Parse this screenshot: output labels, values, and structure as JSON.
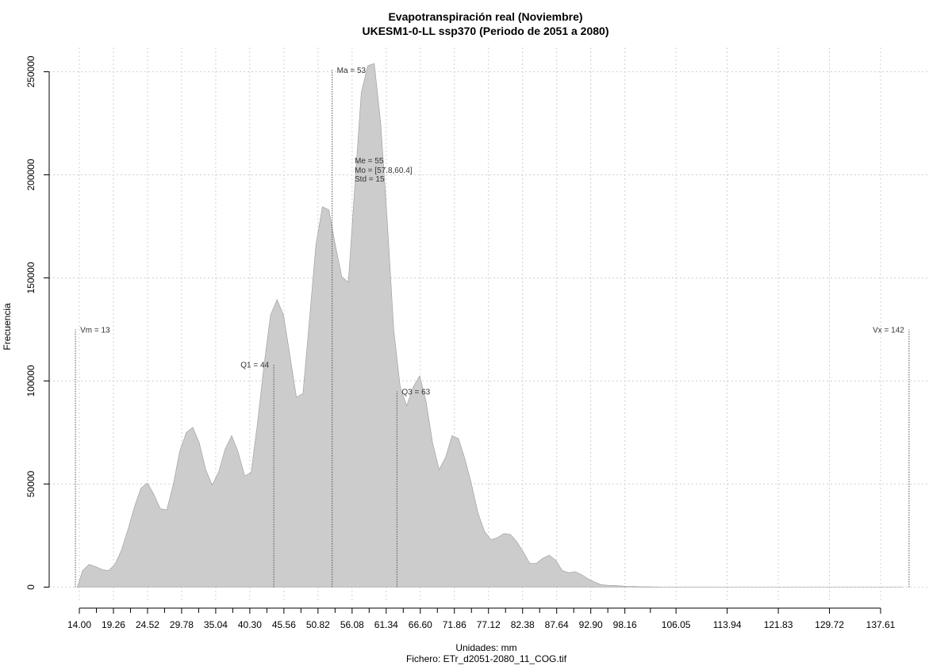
{
  "chart_data": {
    "type": "area",
    "title": "Evapotranspiración real (Noviembre)",
    "subtitle": "UKESM1-0-LL ssp370 (Periodo de 2051 a 2080)",
    "xlabel": "Unidades: mm",
    "ylabel": "Frecuencia",
    "footer": "Fichero: ETr_d2051-2080_11_COG.tif",
    "xlim": [
      12,
      143.5
    ],
    "ylim": [
      0,
      255000
    ],
    "grid": true,
    "fill_color": "#cccccc",
    "x_ticks": [
      {
        "value": 14.0,
        "label": "14.00"
      },
      {
        "value": 19.26,
        "label": "19.26"
      },
      {
        "value": 24.52,
        "label": "24.52"
      },
      {
        "value": 29.78,
        "label": "29.78"
      },
      {
        "value": 35.04,
        "label": "35.04"
      },
      {
        "value": 40.3,
        "label": "40.30"
      },
      {
        "value": 45.56,
        "label": "45.56"
      },
      {
        "value": 50.82,
        "label": "50.82"
      },
      {
        "value": 56.08,
        "label": "56.08"
      },
      {
        "value": 61.34,
        "label": "61.34"
      },
      {
        "value": 66.6,
        "label": "66.60"
      },
      {
        "value": 71.86,
        "label": "71.86"
      },
      {
        "value": 77.12,
        "label": "77.12"
      },
      {
        "value": 82.38,
        "label": "82.38"
      },
      {
        "value": 87.64,
        "label": "87.64"
      },
      {
        "value": 92.9,
        "label": "92.90"
      },
      {
        "value": 98.16,
        "label": "98.16"
      },
      {
        "value": 106.05,
        "label": "106.05"
      },
      {
        "value": 113.94,
        "label": "113.94"
      },
      {
        "value": 121.83,
        "label": "121.83"
      },
      {
        "value": 129.72,
        "label": "129.72"
      },
      {
        "value": 137.61,
        "label": "137.61"
      }
    ],
    "minor_x_ticks": [
      16.63,
      21.89,
      27.15,
      32.41,
      37.67,
      42.93,
      48.19,
      53.45,
      58.71,
      63.97,
      69.23,
      74.49,
      79.75,
      85.01,
      90.27,
      95.53,
      102.1
    ],
    "y_ticks": [
      {
        "value": 0,
        "label": "0"
      },
      {
        "value": 50000,
        "label": "50000"
      },
      {
        "value": 100000,
        "label": "100000"
      },
      {
        "value": 150000,
        "label": "150000"
      },
      {
        "value": 200000,
        "label": "200000"
      },
      {
        "value": 250000,
        "label": "250000"
      }
    ],
    "x": [
      13.7,
      14.5,
      15.5,
      16.5,
      17.5,
      18.5,
      19.5,
      20.5,
      21.5,
      22.5,
      23.5,
      24.5,
      25.5,
      26.5,
      27.5,
      28.5,
      29.5,
      30.5,
      31.5,
      32.5,
      33.5,
      34.5,
      35.5,
      36.5,
      37.5,
      38.5,
      39.5,
      40.5,
      41.5,
      42.5,
      43.5,
      44.5,
      45.5,
      46.5,
      47.5,
      48.5,
      49.5,
      50.5,
      51.5,
      52.5,
      53.5,
      54.5,
      55.5,
      56.5,
      57.5,
      58.5,
      59.5,
      60.5,
      61.5,
      62.5,
      63.5,
      64.5,
      65.5,
      66.5,
      67.5,
      68.5,
      69.5,
      70.5,
      71.5,
      72.5,
      73.5,
      74.5,
      75.5,
      76.5,
      77.5,
      78.5,
      79.5,
      80.5,
      81.5,
      82.5,
      83.5,
      84.5,
      85.5,
      86.5,
      87.5,
      88.5,
      89.5,
      90.5,
      91.5,
      92.5,
      93.5,
      94.5,
      95.5,
      96.5,
      97.5,
      98.5,
      99.5,
      100.5,
      101.5,
      102.5,
      104,
      106,
      110,
      115,
      120,
      125,
      130,
      135,
      141
    ],
    "values": [
      0,
      8000,
      11000,
      10000,
      8500,
      8000,
      11000,
      18000,
      28000,
      39000,
      48000,
      50500,
      45000,
      38000,
      37500,
      50000,
      66000,
      75000,
      77500,
      70000,
      57000,
      49500,
      56000,
      67000,
      73500,
      65500,
      54000,
      55500,
      80000,
      108000,
      132000,
      139500,
      132000,
      112000,
      92000,
      94000,
      130000,
      166000,
      184500,
      183000,
      166000,
      150500,
      148000,
      195000,
      240000,
      253000,
      254000,
      225000,
      178000,
      125000,
      97000,
      88000,
      97000,
      102500,
      90000,
      70000,
      57000,
      63000,
      73500,
      72000,
      62000,
      50000,
      36000,
      27000,
      23000,
      24000,
      26000,
      25500,
      22000,
      17000,
      11500,
      11500,
      14000,
      15500,
      13000,
      8000,
      7000,
      7500,
      6000,
      4000,
      2500,
      1200,
      900,
      800,
      600,
      400,
      300,
      200,
      150,
      100,
      50,
      30,
      20,
      10,
      5,
      3,
      2,
      1,
      0
    ],
    "vlines": [
      {
        "name": "vm",
        "x": 13.4,
        "y_top": 125000,
        "label": "Vm = 13",
        "anchor": "start"
      },
      {
        "name": "q1",
        "x": 44.0,
        "y_top": 108000,
        "label": "Q1 = 44",
        "anchor": "end"
      },
      {
        "name": "ma",
        "x": 53.0,
        "y_top": 251000,
        "label": "Ma = 53",
        "anchor": "start"
      },
      {
        "name": "q3",
        "x": 63.0,
        "y_top": 95000,
        "label": "Q3 = 63",
        "anchor": "start"
      },
      {
        "name": "vx",
        "x": 142.0,
        "y_top": 125000,
        "label": "Vx = 142",
        "anchor": "end"
      }
    ],
    "stats": {
      "median": "Me = 55",
      "mode": "Mo = [57.8,60.4]",
      "std": "Std = 15"
    }
  }
}
